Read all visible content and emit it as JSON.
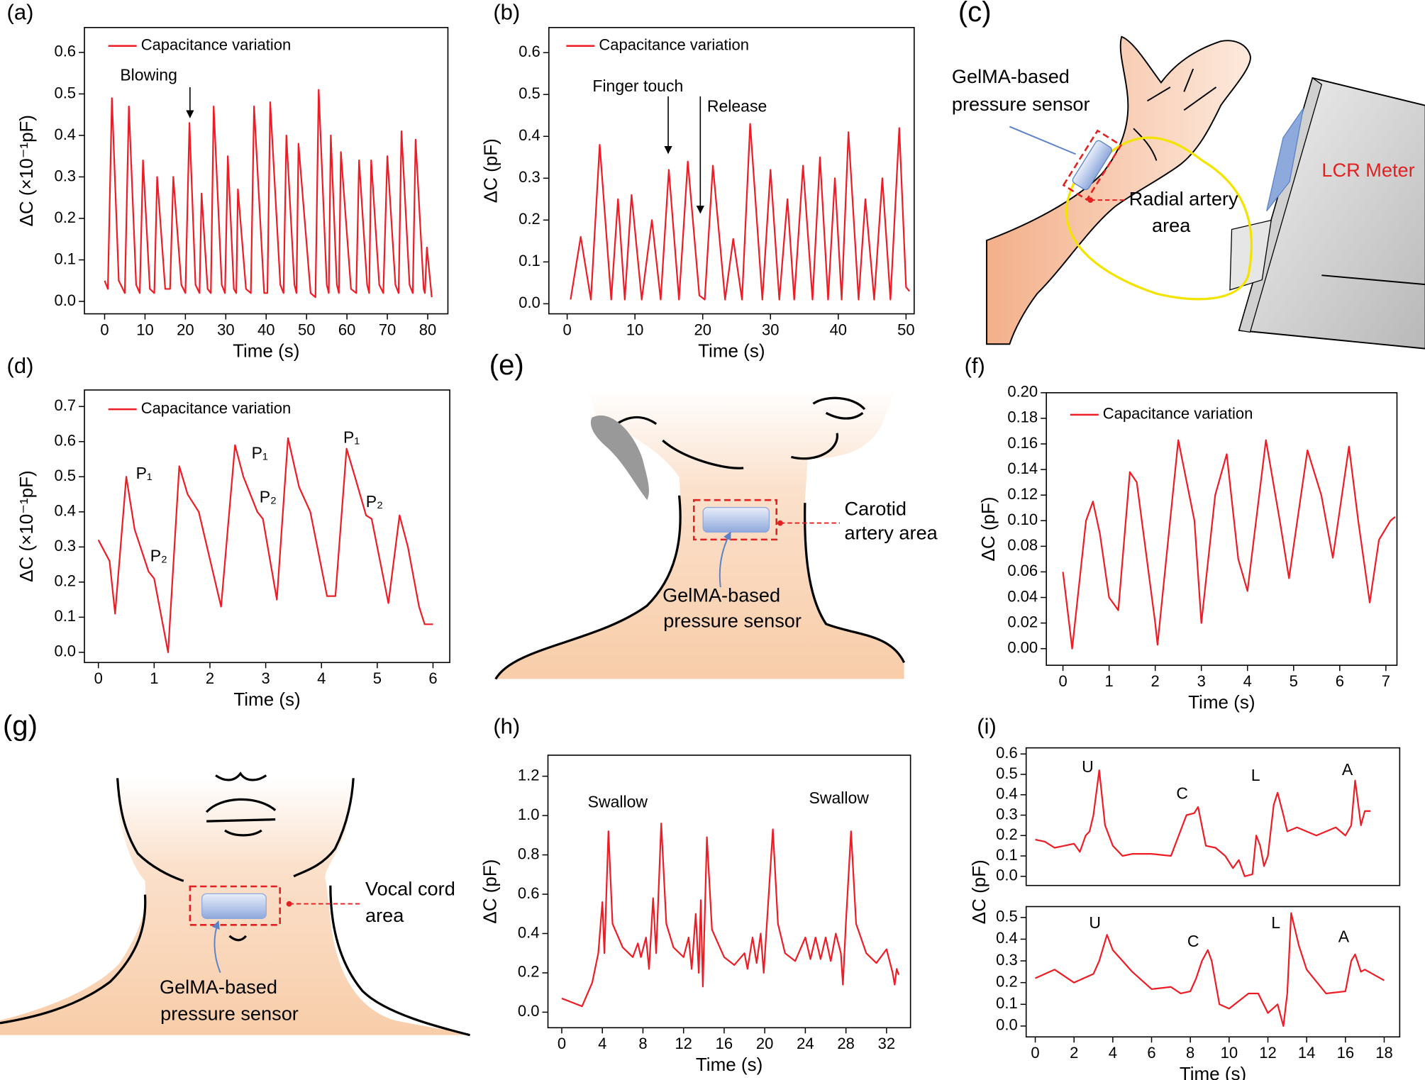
{
  "chart_data": [
    {
      "type": "line",
      "panel_label": "(a)",
      "x_label": "Time (s)",
      "y_label": "ΔC (×10⁻¹pF)",
      "xlim": [
        -5,
        85
      ],
      "ylim": [
        -0.03,
        0.66
      ],
      "xticks": [
        0,
        10,
        20,
        30,
        40,
        50,
        60,
        70,
        80
      ],
      "yticks": [
        {
          "value": 0,
          "label": "0.0"
        },
        0.1,
        0.2,
        0.3,
        0.4,
        0.5,
        0.6
      ],
      "annotations": [
        "Blowing"
      ],
      "x": [
        0,
        0.8,
        1.8,
        3.5,
        5,
        6,
        7.8,
        8.7,
        9.5,
        11.2,
        12.3,
        13,
        15,
        16.2,
        17,
        19,
        20,
        21,
        22.5,
        23.5,
        24,
        25.5,
        26.3,
        27,
        29,
        29.8,
        30.5,
        32,
        32.6,
        33,
        35,
        36.2,
        37,
        39.5,
        40.3,
        41,
        43.5,
        44.3,
        45,
        47,
        47.5,
        48,
        51,
        52.2,
        53,
        55,
        55.5,
        56,
        57.5,
        58,
        58.5,
        61,
        62.3,
        63,
        65,
        65.5,
        66,
        68,
        69,
        70,
        72,
        72.8,
        73.5,
        75.5,
        76.3,
        77,
        79,
        79.3,
        79.8,
        81
      ],
      "series": [
        {
          "name": "Capacitance variation",
          "color": "#ee1c25",
          "values": [
            0.05,
            0.03,
            0.49,
            0.05,
            0.02,
            0.47,
            0.04,
            0.02,
            0.34,
            0.03,
            0.02,
            0.3,
            0.03,
            0.03,
            0.3,
            0.04,
            0.02,
            0.43,
            0.04,
            0.02,
            0.26,
            0.03,
            0.02,
            0.47,
            0.04,
            0.02,
            0.35,
            0.03,
            0.02,
            0.27,
            0.03,
            0.02,
            0.47,
            0.02,
            0.02,
            0.48,
            0.04,
            0.02,
            0.4,
            0.04,
            0.02,
            0.38,
            0.02,
            0.01,
            0.51,
            0.04,
            0.02,
            0.4,
            0.04,
            0.02,
            0.36,
            0.03,
            0.02,
            0.34,
            0.04,
            0.02,
            0.34,
            0.04,
            0.02,
            0.35,
            0.04,
            0.02,
            0.41,
            0.04,
            0.02,
            0.39,
            0.03,
            0.02,
            0.13,
            0.01
          ]
        }
      ]
    },
    {
      "type": "line",
      "panel_label": "(b)",
      "x_label": "Time (s)",
      "y_label": "ΔC (pF)",
      "xlim": [
        -2.7,
        51.2
      ],
      "ylim": [
        -0.024,
        0.66
      ],
      "xticks": [
        0,
        10,
        20,
        30,
        40,
        50
      ],
      "yticks": [
        {
          "value": 0,
          "label": "0.0"
        },
        0.1,
        0.2,
        0.3,
        0.4,
        0.5,
        0.6
      ],
      "annotations": [
        "Finger touch",
        "Release"
      ],
      "x": [
        0.5,
        2,
        3.5,
        4.8,
        6.5,
        7.5,
        8.5,
        9.5,
        11,
        12.5,
        13.8,
        15,
        16.5,
        17.8,
        19.5,
        20.3,
        21.5,
        23.3,
        24.5,
        25.8,
        27,
        28.8,
        30,
        31.3,
        32.5,
        33.5,
        34.8,
        36.2,
        37.3,
        38.5,
        39.5,
        40.5,
        41.5,
        43,
        44,
        45.3,
        46.5,
        47.7,
        49,
        50,
        50.5
      ],
      "series": [
        {
          "name": "Capacitance variation",
          "color": "#ee1c25",
          "values": [
            0.01,
            0.16,
            0.01,
            0.38,
            0.01,
            0.25,
            0.01,
            0.26,
            0.01,
            0.2,
            0.01,
            0.32,
            0.01,
            0.34,
            0.02,
            0.01,
            0.33,
            0.01,
            0.155,
            0.01,
            0.43,
            0.01,
            0.32,
            0.01,
            0.25,
            0.01,
            0.33,
            0.01,
            0.35,
            0.01,
            0.3,
            0.01,
            0.41,
            0.01,
            0.25,
            0.01,
            0.3,
            0.01,
            0.42,
            0.04,
            0.03
          ]
        }
      ]
    },
    {
      "type": "line",
      "panel_label": "(d)",
      "x_label": "Time (s)",
      "y_label": "ΔC (×10⁻¹pF)",
      "xlim": [
        -0.25,
        6.3
      ],
      "ylim": [
        -0.029,
        0.747
      ],
      "xticks": [
        0,
        1,
        2,
        3,
        4,
        5,
        6
      ],
      "yticks": [
        {
          "value": 0,
          "label": "0.0"
        },
        0.1,
        0.2,
        0.3,
        0.4,
        0.5,
        0.6,
        0.7
      ],
      "annotations": [
        "P₁",
        "P₂",
        "P₁",
        "P₂",
        "P₁",
        "P₂"
      ],
      "x": [
        0,
        0.2,
        0.3,
        0.5,
        0.65,
        0.9,
        1.0,
        1.25,
        1.45,
        1.6,
        1.8,
        2.2,
        2.45,
        2.6,
        2.85,
        2.95,
        3.2,
        3.4,
        3.6,
        3.8,
        4.1,
        4.25,
        4.45,
        4.6,
        4.8,
        4.9,
        5.2,
        5.4,
        5.55,
        5.75,
        5.85,
        6.0
      ],
      "series": [
        {
          "name": "Capacitance variation",
          "color": "#ee1c25",
          "values": [
            0.32,
            0.26,
            0.11,
            0.5,
            0.35,
            0.23,
            0.21,
            0.0,
            0.53,
            0.45,
            0.4,
            0.13,
            0.59,
            0.5,
            0.4,
            0.38,
            0.15,
            0.61,
            0.47,
            0.4,
            0.16,
            0.16,
            0.58,
            0.5,
            0.39,
            0.38,
            0.14,
            0.39,
            0.3,
            0.13,
            0.08,
            0.08
          ]
        }
      ]
    },
    {
      "type": "line",
      "panel_label": "(f)",
      "x_label": "Time (s)",
      "y_label": "ΔC (pF)",
      "xlim": [
        -0.36,
        7.24
      ],
      "ylim": [
        -0.013,
        0.2
      ],
      "xticks": [
        0,
        1,
        2,
        3,
        4,
        5,
        6,
        7
      ],
      "yticks": [
        {
          "value": 0,
          "label": "0.00"
        },
        0.02,
        0.04,
        0.06,
        0.08,
        {
          "value": 0.1,
          "label": "0.10"
        },
        0.12,
        0.14,
        0.16,
        0.18,
        {
          "value": 0.2,
          "label": "0.20"
        }
      ],
      "x": [
        0,
        0.2,
        0.5,
        0.65,
        0.8,
        1.0,
        1.2,
        1.45,
        1.6,
        2.0,
        2.05,
        2.5,
        2.85,
        3.0,
        3.3,
        3.55,
        3.8,
        4.0,
        4.4,
        4.7,
        4.9,
        5.3,
        5.6,
        5.85,
        6.2,
        6.4,
        6.65,
        6.85,
        7.1,
        7.2
      ],
      "series": [
        {
          "name": "Capacitance variation",
          "color": "#ee1c25",
          "values": [
            0.06,
            0.0,
            0.1,
            0.115,
            0.09,
            0.04,
            0.03,
            0.138,
            0.13,
            0.02,
            0.003,
            0.163,
            0.1,
            0.02,
            0.12,
            0.152,
            0.07,
            0.045,
            0.163,
            0.1,
            0.055,
            0.155,
            0.12,
            0.071,
            0.158,
            0.1,
            0.036,
            0.085,
            0.1,
            0.103
          ]
        }
      ]
    },
    {
      "type": "line",
      "panel_label": "(h)",
      "x_label": "Time (s)",
      "y_label": "ΔC (pF)",
      "xlim": [
        -1.36,
        34.36
      ],
      "ylim": [
        -0.079,
        1.307
      ],
      "xticks": [
        0,
        4,
        8,
        12,
        16,
        20,
        24,
        28,
        32
      ],
      "yticks": [
        {
          "value": 0,
          "label": "0.0"
        },
        0.2,
        0.4,
        0.6,
        0.8,
        {
          "value": 1,
          "label": "1.0"
        },
        1.2
      ],
      "annotations": [
        "Swallow",
        "Swallow"
      ],
      "color": "#ee1c25",
      "x": [
        0,
        1,
        2,
        3,
        3.6,
        4.0,
        4.2,
        4.6,
        5.0,
        6,
        7,
        7.5,
        7.8,
        8.3,
        8.6,
        9.0,
        9.3,
        9.8,
        10.3,
        11,
        12,
        12.5,
        12.8,
        13.2,
        13.5,
        13.7,
        13.9,
        14.3,
        14.8,
        16,
        17,
        18,
        18.3,
        18.8,
        19.2,
        19.6,
        19.9,
        20.8,
        21.3,
        22,
        23,
        24,
        24.5,
        25,
        25.5,
        26,
        26.5,
        27,
        27.5,
        27.7,
        28,
        28.5,
        29,
        30,
        31,
        32,
        32.6,
        32.8,
        33,
        33.2
      ],
      "values": [
        0.07,
        0.05,
        0.03,
        0.15,
        0.3,
        0.56,
        0.3,
        0.92,
        0.45,
        0.33,
        0.28,
        0.35,
        0.28,
        0.38,
        0.22,
        0.58,
        0.3,
        0.96,
        0.45,
        0.33,
        0.28,
        0.38,
        0.22,
        0.5,
        0.2,
        0.57,
        0.13,
        0.89,
        0.42,
        0.28,
        0.24,
        0.3,
        0.22,
        0.38,
        0.25,
        0.4,
        0.2,
        0.93,
        0.45,
        0.3,
        0.26,
        0.38,
        0.27,
        0.38,
        0.27,
        0.38,
        0.26,
        0.4,
        0.3,
        0.14,
        0.46,
        0.92,
        0.45,
        0.3,
        0.25,
        0.32,
        0.2,
        0.14,
        0.22,
        0.19
      ]
    },
    {
      "type": "line",
      "panel_label": "(i)",
      "y_label": "ΔC (pF)",
      "xlim": [
        -0.47,
        18.8
      ],
      "ylim": [
        -0.045,
        0.63
      ],
      "yticks": [
        {
          "value": 0,
          "label": "0.0"
        },
        0.1,
        0.2,
        0.3,
        0.4,
        0.5,
        0.6
      ],
      "annotations": [
        "U",
        "C",
        "L",
        "A"
      ],
      "color": "#ee1c25",
      "x": [
        0,
        0.5,
        1,
        1.5,
        2,
        2.3,
        2.6,
        2.8,
        3.0,
        3.3,
        3.6,
        4,
        4.5,
        5,
        6,
        7,
        7.4,
        7.8,
        8.2,
        8.4,
        8.8,
        9.3,
        9.8,
        10.2,
        10.5,
        10.8,
        11.2,
        11.4,
        11.6,
        11.8,
        12.0,
        12.3,
        12.5,
        12.8,
        13,
        13.5,
        14,
        14.5,
        15,
        15.5,
        16,
        16.3,
        16.5,
        16.8,
        17,
        17.3
      ],
      "values": [
        0.18,
        0.17,
        0.14,
        0.15,
        0.16,
        0.12,
        0.2,
        0.22,
        0.3,
        0.52,
        0.25,
        0.15,
        0.1,
        0.11,
        0.11,
        0.1,
        0.2,
        0.3,
        0.31,
        0.34,
        0.15,
        0.14,
        0.1,
        0.04,
        0.08,
        0.0,
        0.01,
        0.2,
        0.15,
        0.05,
        0.1,
        0.35,
        0.41,
        0.3,
        0.22,
        0.24,
        0.22,
        0.2,
        0.22,
        0.24,
        0.2,
        0.25,
        0.47,
        0.25,
        0.32,
        0.32
      ]
    },
    {
      "type": "line",
      "x_label": "Time (s)",
      "xlim": [
        -0.47,
        18.8
      ],
      "ylim": [
        -0.05,
        0.55
      ],
      "xticks": [
        0,
        2,
        4,
        6,
        8,
        10,
        12,
        14,
        16,
        18
      ],
      "yticks": [
        {
          "value": 0,
          "label": "0.0"
        },
        0.1,
        0.2,
        0.3,
        0.4,
        0.5
      ],
      "annotations": [
        "U",
        "C",
        "L",
        "A"
      ],
      "color": "#ee1c25",
      "x": [
        0,
        0.5,
        1,
        2,
        3,
        3.3,
        3.7,
        4,
        4.5,
        5,
        6,
        7,
        7.5,
        8,
        8.3,
        8.6,
        8.9,
        9.1,
        9.5,
        10,
        11,
        11.5,
        12,
        12.5,
        12.8,
        13,
        13.2,
        13.6,
        14,
        15,
        16,
        16.3,
        16.5,
        16.8,
        17,
        18
      ],
      "values": [
        0.22,
        0.24,
        0.26,
        0.2,
        0.24,
        0.3,
        0.42,
        0.35,
        0.3,
        0.25,
        0.17,
        0.18,
        0.15,
        0.16,
        0.22,
        0.3,
        0.35,
        0.3,
        0.1,
        0.08,
        0.15,
        0.15,
        0.06,
        0.1,
        0.0,
        0.15,
        0.52,
        0.37,
        0.26,
        0.15,
        0.16,
        0.3,
        0.33,
        0.25,
        0.26,
        0.21
      ]
    }
  ],
  "diagrams": [
    {
      "panel_label": "(c)",
      "sensor_label": [
        "GelMA-based",
        "pressure sensor"
      ],
      "area_label": [
        "Radial artery",
        "area"
      ],
      "instrument_label": "LCR Meter"
    },
    {
      "panel_label": "(e)",
      "area_label": [
        "Carotid",
        "artery area"
      ],
      "sensor_label": [
        "GelMA-based",
        "pressure sensor"
      ]
    },
    {
      "panel_label": "(g)",
      "area_label": [
        "Vocal cord",
        "area"
      ],
      "sensor_label": [
        "GelMA-based",
        "pressure sensor"
      ]
    }
  ]
}
